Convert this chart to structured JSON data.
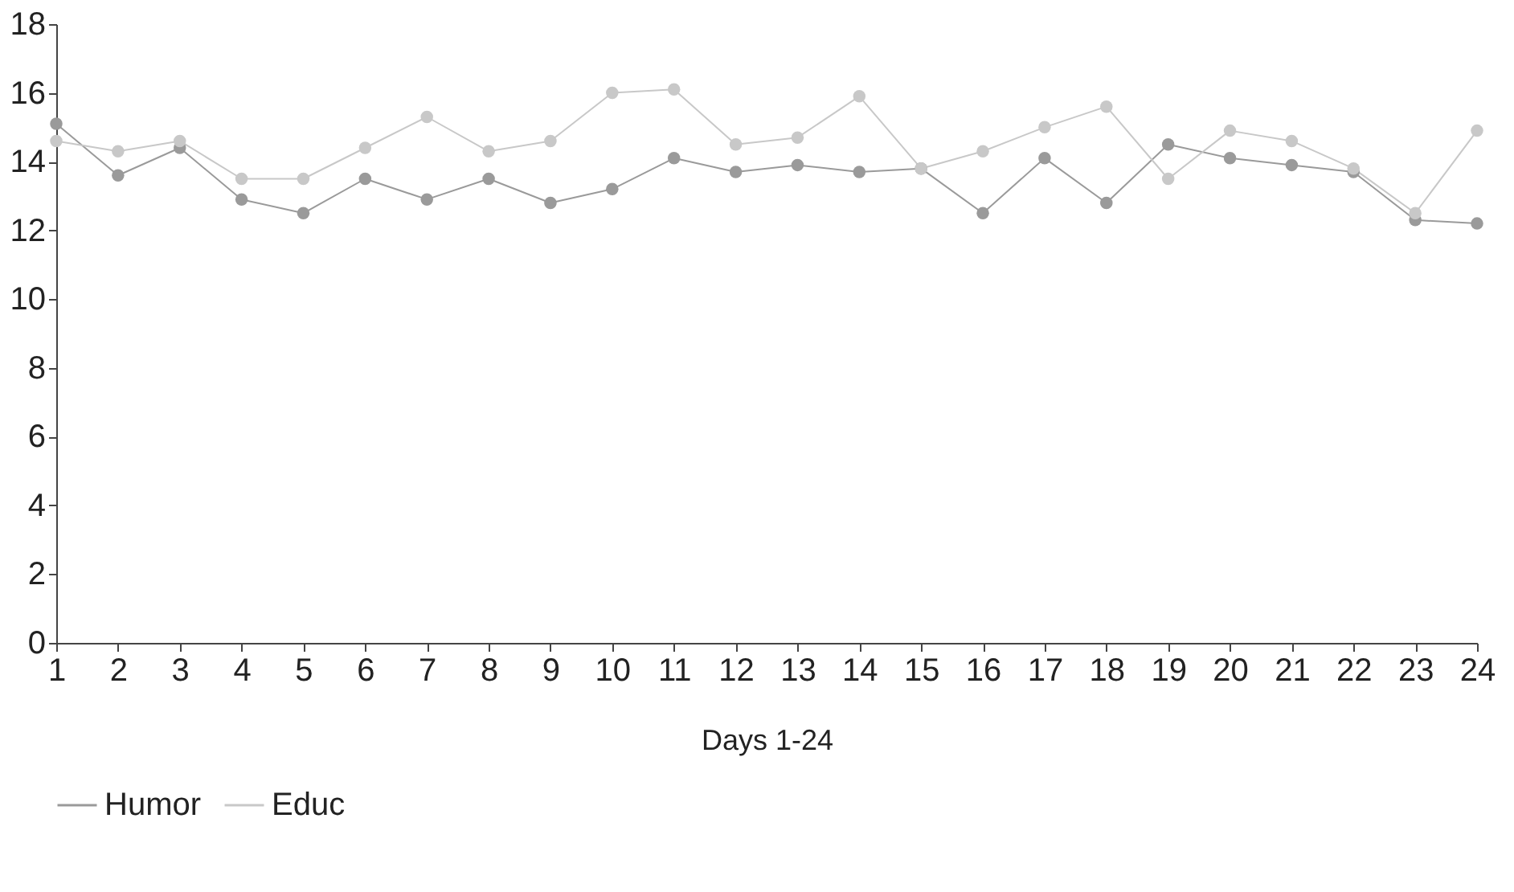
{
  "chart_data": {
    "type": "line",
    "xlabel": "Days 1-24",
    "x": [
      1,
      2,
      3,
      4,
      5,
      6,
      7,
      8,
      9,
      10,
      11,
      12,
      13,
      14,
      15,
      16,
      17,
      18,
      19,
      20,
      21,
      22,
      23,
      24
    ],
    "series": [
      {
        "name": "Humor",
        "color": "#9a9a9a",
        "values": [
          15.1,
          13.6,
          14.4,
          12.9,
          12.5,
          13.5,
          12.9,
          13.5,
          12.8,
          13.2,
          14.1,
          13.7,
          13.9,
          13.7,
          13.8,
          12.5,
          14.1,
          12.8,
          14.5,
          14.1,
          13.9,
          13.7,
          12.3,
          12.2
        ]
      },
      {
        "name": "Educ",
        "color": "#c8c8c8",
        "values": [
          14.6,
          14.3,
          14.6,
          13.5,
          13.5,
          14.4,
          15.3,
          14.3,
          14.6,
          16.0,
          16.1,
          14.5,
          14.7,
          15.9,
          13.8,
          14.3,
          15.0,
          15.6,
          13.5,
          14.9,
          14.6,
          13.8,
          12.5,
          14.9
        ]
      }
    ],
    "xlim": [
      1,
      24
    ],
    "xticks": [
      1,
      2,
      3,
      4,
      5,
      6,
      7,
      8,
      9,
      10,
      11,
      12,
      13,
      14,
      15,
      16,
      17,
      18,
      19,
      20,
      21,
      22,
      23,
      24
    ],
    "ylim": [
      0,
      18
    ],
    "yticks": [
      0,
      2,
      4,
      6,
      8,
      10,
      12,
      14,
      16,
      18
    ],
    "grid": false,
    "legend": "bottom",
    "marker": "circle",
    "line_style": "solid"
  }
}
